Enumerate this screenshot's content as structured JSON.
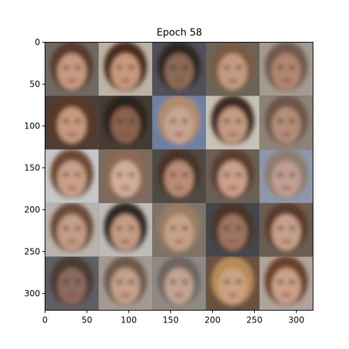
{
  "figure": {
    "title": "Epoch 58",
    "x_ticks": [
      "0",
      "50",
      "100",
      "150",
      "200",
      "250",
      "300"
    ],
    "y_ticks": [
      "0",
      "50",
      "100",
      "150",
      "200",
      "250",
      "300"
    ]
  },
  "image_grid": {
    "rows": 5,
    "cols": 5,
    "description_items": [
      {
        "row": 0,
        "col": 0,
        "bg": "#6f6a61",
        "hair": "#5a3b2a",
        "skin": "#c79a82"
      },
      {
        "row": 0,
        "col": 1,
        "bg": "#bdb3a5",
        "hair": "#4a2c1e",
        "skin": "#c79a7d"
      },
      {
        "row": 0,
        "col": 2,
        "bg": "#52505a",
        "hair": "#2f2520",
        "skin": "#8a6a56"
      },
      {
        "row": 0,
        "col": 3,
        "bg": "#6b6456",
        "hair": "#7a5a43",
        "skin": "#c49b80"
      },
      {
        "row": 0,
        "col": 4,
        "bg": "#a49a90",
        "hair": "#6f5a4d",
        "skin": "#b18770"
      },
      {
        "row": 1,
        "col": 0,
        "bg": "#4d3d33",
        "hair": "#5a3827",
        "skin": "#c69a7e"
      },
      {
        "row": 1,
        "col": 1,
        "bg": "#453b35",
        "hair": "#2b211d",
        "skin": "#8a624d"
      },
      {
        "row": 1,
        "col": 2,
        "bg": "#6f7fa4",
        "hair": "#b08b6d",
        "skin": "#c7a592"
      },
      {
        "row": 1,
        "col": 3,
        "bg": "#c8c1b6",
        "hair": "#3b2a22",
        "skin": "#c59b82"
      },
      {
        "row": 1,
        "col": 4,
        "bg": "#8e8378",
        "hair": "#6d5547",
        "skin": "#b48d79"
      },
      {
        "row": 2,
        "col": 0,
        "bg": "#c7c7c7",
        "hair": "#6b4a36",
        "skin": "#c9a08a"
      },
      {
        "row": 2,
        "col": 1,
        "bg": "#7b6a5d",
        "hair": "#8c6a52",
        "skin": "#d1ad98"
      },
      {
        "row": 2,
        "col": 2,
        "bg": "#504a45",
        "hair": "#4a3327",
        "skin": "#b98c73"
      },
      {
        "row": 2,
        "col": 3,
        "bg": "#6c5f54",
        "hair": "#5a3e2e",
        "skin": "#c9a08a"
      },
      {
        "row": 2,
        "col": 4,
        "bg": "#8e97a9",
        "hair": "#8e7c6f",
        "skin": "#bf9f92"
      },
      {
        "row": 3,
        "col": 0,
        "bg": "#b9b3ad",
        "hair": "#6b4c39",
        "skin": "#c49e89"
      },
      {
        "row": 3,
        "col": 1,
        "bg": "#bfbcb8",
        "hair": "#2e2521",
        "skin": "#c69c83"
      },
      {
        "row": 3,
        "col": 2,
        "bg": "#7d7369",
        "hair": "#9a7d63",
        "skin": "#c7a286"
      },
      {
        "row": 3,
        "col": 3,
        "bg": "#44474d",
        "hair": "#4a3428",
        "skin": "#9d7461"
      },
      {
        "row": 3,
        "col": 4,
        "bg": "#6c5d52",
        "hair": "#5a3b2a",
        "skin": "#c7a08b"
      },
      {
        "row": 4,
        "col": 0,
        "bg": "#5f5f65",
        "hair": "#4a3a30",
        "skin": "#8a6a5d"
      },
      {
        "row": 4,
        "col": 1,
        "bg": "#a39b93",
        "hair": "#6d5a4b",
        "skin": "#c4a08c"
      },
      {
        "row": 4,
        "col": 2,
        "bg": "#8f8a86",
        "hair": "#6e655e",
        "skin": "#c1a493"
      },
      {
        "row": 4,
        "col": 3,
        "bg": "#6a5140",
        "hair": "#b88a55",
        "skin": "#c9a383"
      },
      {
        "row": 4,
        "col": 4,
        "bg": "#b0a49a",
        "hair": "#6a402b",
        "skin": "#caa089"
      }
    ]
  }
}
